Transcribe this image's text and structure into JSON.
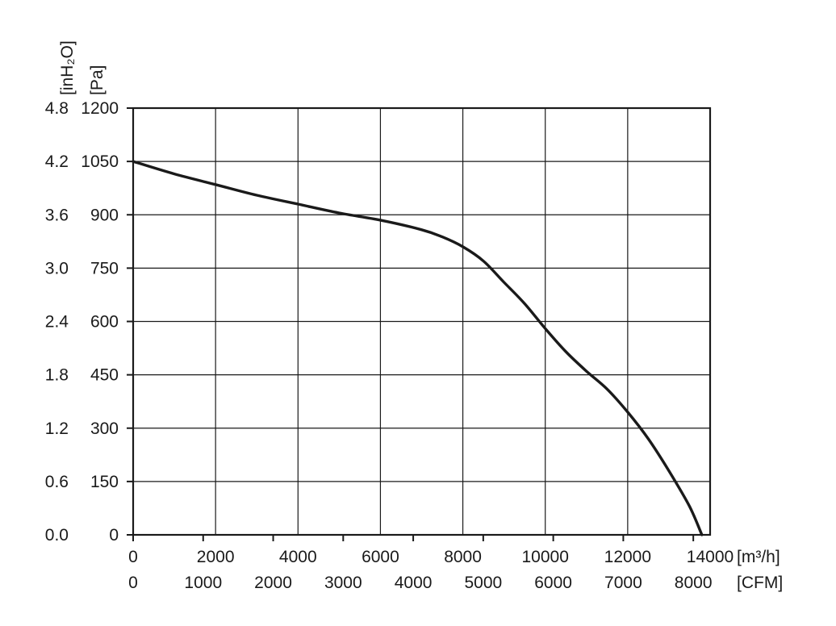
{
  "chart_data": {
    "type": "line",
    "y_left_pa": {
      "unit": "[Pa]",
      "ticks": [
        "0",
        "150",
        "300",
        "450",
        "600",
        "750",
        "900",
        "1050",
        "1200"
      ],
      "ylim": [
        0,
        1200
      ]
    },
    "y_left_inh2o": {
      "unit": "[inH₂O]",
      "ticks": [
        "0.0",
        "0.6",
        "1.2",
        "1.8",
        "2.4",
        "3.0",
        "3.6",
        "4.2",
        "4.8"
      ]
    },
    "x_m3h": {
      "unit": "[m³/h]",
      "ticks": [
        "0",
        "2000",
        "4000",
        "6000",
        "8000",
        "10000",
        "12000",
        "14000"
      ],
      "xlim": [
        0,
        14000
      ]
    },
    "x_cfm": {
      "unit": "[CFM]",
      "ticks": [
        "0",
        "1000",
        "2000",
        "3000",
        "4000",
        "5000",
        "6000",
        "7000",
        "8000"
      ],
      "xmax_m3h": 13592
    },
    "grid": true,
    "series": [
      {
        "x": [
          0,
          1000,
          2000,
          3000,
          4000,
          5000,
          6000,
          7000,
          7500,
          8000,
          8500,
          9000,
          9500,
          10000,
          10500,
          11000,
          11500,
          12000,
          12500,
          13000,
          13500,
          13800
        ],
        "y": [
          1050,
          1015,
          985,
          955,
          930,
          905,
          885,
          858,
          838,
          810,
          770,
          710,
          650,
          580,
          515,
          460,
          410,
          345,
          270,
          180,
          80,
          0
        ]
      }
    ]
  }
}
